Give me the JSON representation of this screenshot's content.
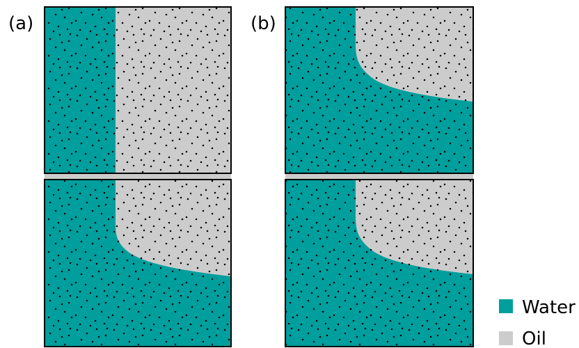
{
  "panels": [
    {
      "label": "(a)"
    },
    {
      "label": "(b)"
    }
  ],
  "legend": [
    {
      "label": "Water",
      "color": "#009e9d"
    },
    {
      "label": "Oil",
      "color": "#cccccc"
    }
  ],
  "colors": {
    "water": "#009e9d",
    "oil": "#cccccc",
    "grain": "#000000",
    "border": "#000000"
  }
}
